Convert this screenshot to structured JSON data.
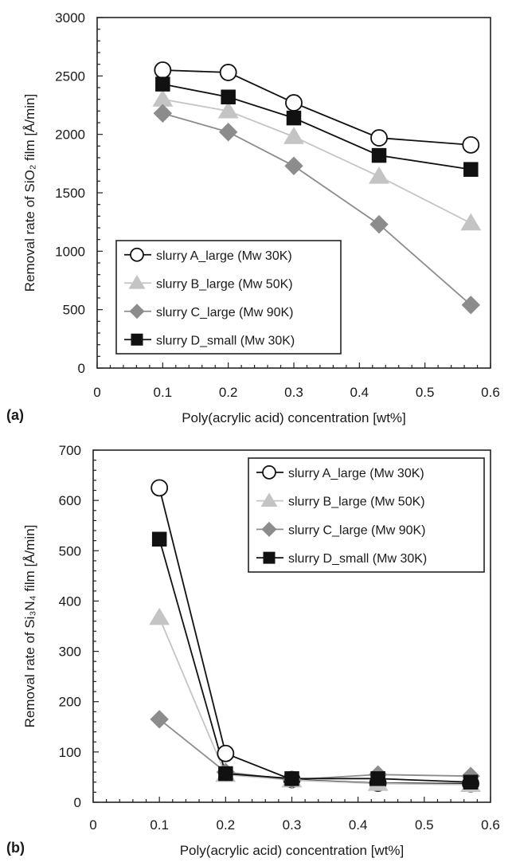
{
  "chart_data": [
    {
      "type": "line",
      "panel_label": "(a)",
      "xlabel": "Poly(acrylic acid) concentration [wt%]",
      "ylabel": "Removal rate of SiO₂ film [Å/min]",
      "xlim": [
        0,
        0.6
      ],
      "ylim": [
        0,
        3000
      ],
      "xticks": [
        "0",
        "0.1",
        "0.2",
        "0.3",
        "0.4",
        "0.5",
        "0.6"
      ],
      "yticks": [
        "0",
        "500",
        "1000",
        "1500",
        "2000",
        "2500",
        "3000"
      ],
      "legend_position": "bottom-left",
      "x": [
        0.1,
        0.2,
        0.3,
        0.43,
        0.57
      ],
      "series": [
        {
          "name": "slurry A_large (Mw 30K)",
          "marker": "open-circle",
          "color": "#111111",
          "values": [
            2550,
            2530,
            2270,
            1970,
            1910
          ]
        },
        {
          "name": "slurry B_large (Mw 50K)",
          "marker": "triangle",
          "color": "#c4c4c4",
          "values": [
            2300,
            2200,
            1980,
            1640,
            1240
          ]
        },
        {
          "name": "slurry C_large (Mw 90K)",
          "marker": "diamond",
          "color": "#8c8c8c",
          "values": [
            2180,
            2020,
            1730,
            1230,
            540
          ]
        },
        {
          "name": "slurry D_small (Mw 30K)",
          "marker": "filled-square",
          "color": "#111111",
          "values": [
            2430,
            2320,
            2140,
            1820,
            1700
          ]
        }
      ]
    },
    {
      "type": "line",
      "panel_label": "(b)",
      "xlabel": "Poly(acrylic acid) concentration [wt%]",
      "ylabel": "Removal rate of Si₃N₄ film [Å/min]",
      "xlim": [
        0,
        0.6
      ],
      "ylim": [
        0,
        700
      ],
      "xticks": [
        "0",
        "0.1",
        "0.2",
        "0.3",
        "0.4",
        "0.5",
        "0.6"
      ],
      "yticks": [
        "0",
        "100",
        "200",
        "300",
        "400",
        "500",
        "600",
        "700"
      ],
      "legend_position": "top-right",
      "x": [
        0.1,
        0.2,
        0.3,
        0.43,
        0.57
      ],
      "series": [
        {
          "name": "slurry A_large (Mw 30K)",
          "marker": "open-circle",
          "color": "#111111",
          "values": [
            625,
            97,
            45,
            38,
            37
          ]
        },
        {
          "name": "slurry B_large (Mw 50K)",
          "marker": "triangle",
          "color": "#c4c4c4",
          "values": [
            367,
            55,
            44,
            37,
            35
          ]
        },
        {
          "name": "slurry C_large (Mw 90K)",
          "marker": "diamond",
          "color": "#8c8c8c",
          "values": [
            165,
            60,
            45,
            55,
            52
          ]
        },
        {
          "name": "slurry D_small (Mw 30K)",
          "marker": "filled-square",
          "color": "#111111",
          "values": [
            523,
            57,
            47,
            47,
            40
          ]
        }
      ]
    }
  ]
}
